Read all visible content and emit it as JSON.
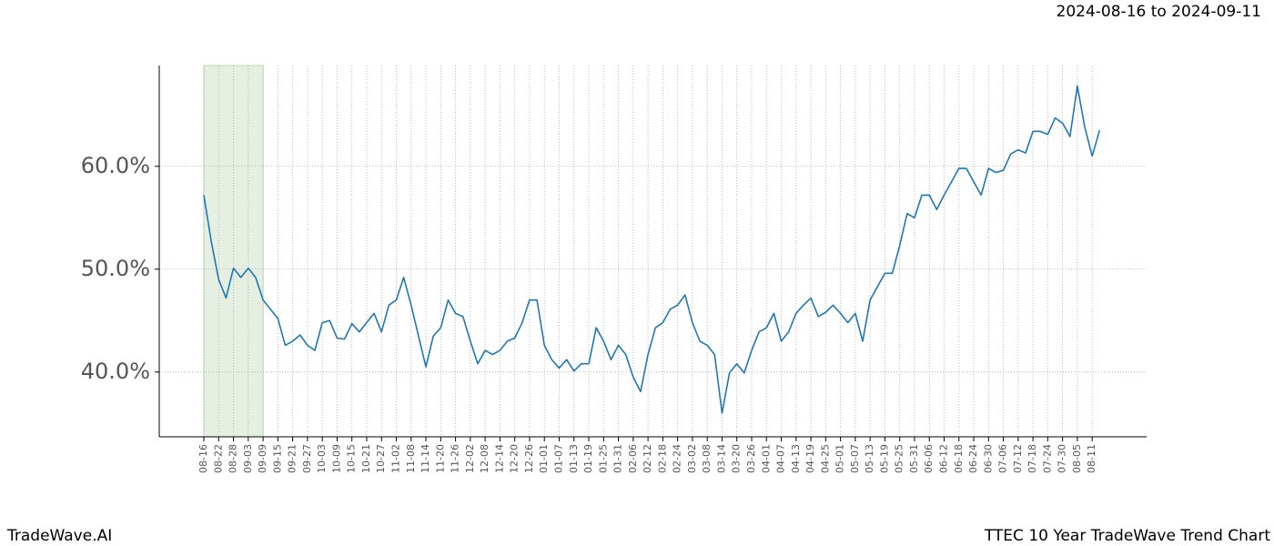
{
  "chart_data": {
    "type": "line",
    "title": "2024-08-16 to 2024-09-11",
    "footer_left": "TradeWave.AI",
    "footer_right": "TTEC 10 Year TradeWave Trend Chart",
    "categories": [
      "08-16",
      null,
      "08-22",
      null,
      "08-28",
      null,
      "09-03",
      null,
      "09-09",
      null,
      "09-15",
      null,
      "09-21",
      null,
      "09-27",
      null,
      "10-03",
      null,
      "10-09",
      null,
      "10-15",
      null,
      "10-21",
      null,
      "10-27",
      null,
      "11-02",
      null,
      "11-08",
      null,
      "11-14",
      null,
      "11-20",
      null,
      "11-26",
      null,
      "12-02",
      null,
      "12-08",
      null,
      "12-14",
      null,
      "12-20",
      null,
      "12-26",
      null,
      "01-01",
      null,
      "01-07",
      null,
      "01-13",
      null,
      "01-19",
      null,
      "01-25",
      null,
      "01-31",
      null,
      "02-06",
      null,
      "02-12",
      null,
      "02-18",
      null,
      "02-24",
      null,
      "03-02",
      null,
      "03-08",
      null,
      "03-14",
      null,
      "03-20",
      null,
      "03-26",
      null,
      "04-01",
      null,
      "04-07",
      null,
      "04-13",
      null,
      "04-19",
      null,
      "04-25",
      null,
      "05-01",
      null,
      "05-07",
      null,
      "05-13",
      null,
      "05-19",
      null,
      "05-25",
      null,
      "05-31",
      null,
      "06-06",
      null,
      "06-12",
      null,
      "06-18",
      null,
      "06-24",
      null,
      "06-30",
      null,
      "07-06",
      null,
      "07-12",
      null,
      "07-18",
      null,
      "07-24",
      null,
      "07-30",
      null,
      "08-05",
      null,
      "08-11",
      null
    ],
    "values": [
      57.2,
      52.7,
      49.0,
      47.2,
      50.1,
      49.2,
      50.1,
      49.2,
      47.0,
      46.1,
      45.2,
      42.6,
      43.0,
      43.6,
      42.6,
      42.1,
      44.8,
      45.0,
      43.3,
      43.2,
      44.7,
      43.9,
      44.8,
      45.7,
      43.9,
      46.5,
      47.0,
      49.2,
      46.5,
      43.5,
      40.5,
      43.5,
      44.3,
      47.0,
      45.7,
      45.4,
      43.0,
      40.8,
      42.1,
      41.7,
      42.1,
      43.0,
      43.3,
      44.8,
      47.0,
      47.0,
      42.6,
      41.2,
      40.4,
      41.2,
      40.1,
      40.8,
      40.8,
      44.3,
      43.0,
      41.2,
      42.6,
      41.7,
      39.5,
      38.1,
      41.7,
      44.3,
      44.8,
      46.1,
      46.5,
      47.5,
      44.8,
      43.0,
      42.6,
      41.7,
      36.0,
      39.9,
      40.8,
      39.9,
      42.1,
      43.9,
      44.3,
      45.7,
      43.0,
      43.9,
      45.7,
      46.5,
      47.2,
      45.4,
      45.8,
      46.5,
      45.7,
      44.8,
      45.7,
      43.0,
      47.0,
      48.3,
      49.6,
      49.6,
      52.3,
      55.4,
      55.0,
      57.2,
      57.2,
      55.8,
      57.2,
      58.5,
      59.8,
      59.8,
      58.5,
      57.2,
      59.8,
      59.4,
      59.6,
      61.2,
      61.6,
      61.3,
      63.4,
      63.4,
      63.1,
      64.7,
      64.2,
      62.9,
      67.8,
      63.8,
      61.0,
      63.5
    ],
    "color": "#1f77b4",
    "highlight": [
      "08-16",
      "09-09"
    ],
    "highlight_color": "#e5f0e2",
    "ylim": [
      33.7,
      69.8
    ],
    "yticks": [
      {
        "value": 40,
        "label": "40.0%"
      },
      {
        "value": 50,
        "label": "50.0%"
      },
      {
        "value": 60,
        "label": "60.0%"
      }
    ],
    "grid": true
  }
}
